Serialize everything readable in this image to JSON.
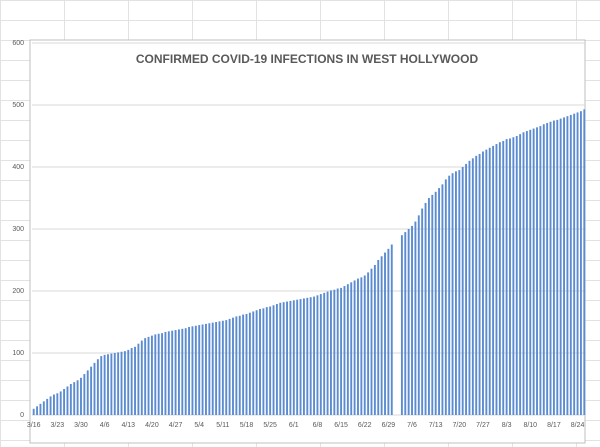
{
  "chart_data": {
    "type": "bar",
    "title": "CONFIRMED COVID-19 INFECTIONS IN WEST HOLLYWOOD",
    "categories": [
      "3/16",
      null,
      null,
      null,
      null,
      null,
      null,
      "3/23",
      null,
      null,
      null,
      null,
      null,
      null,
      "3/30",
      null,
      null,
      null,
      null,
      null,
      null,
      "4/6",
      null,
      null,
      null,
      null,
      null,
      null,
      "4/13",
      null,
      null,
      null,
      null,
      null,
      null,
      "4/20",
      null,
      null,
      null,
      null,
      null,
      null,
      "4/27",
      null,
      null,
      null,
      null,
      null,
      null,
      "5/4",
      null,
      null,
      null,
      null,
      null,
      null,
      "5/11",
      null,
      null,
      null,
      null,
      null,
      null,
      "5/18",
      null,
      null,
      null,
      null,
      null,
      null,
      "5/25",
      null,
      null,
      null,
      null,
      null,
      null,
      "6/1",
      null,
      null,
      null,
      null,
      null,
      null,
      "6/8",
      null,
      null,
      null,
      null,
      null,
      null,
      "6/15",
      null,
      null,
      null,
      null,
      null,
      null,
      "6/22",
      null,
      null,
      null,
      null,
      null,
      null,
      "6/29",
      null,
      null,
      null,
      null,
      null,
      null,
      "7/6",
      null,
      null,
      null,
      null,
      null,
      null,
      "7/13",
      null,
      null,
      null,
      null,
      null,
      null,
      "7/20",
      null,
      null,
      null,
      null,
      null,
      null,
      "7/27",
      null,
      null,
      null,
      null,
      null,
      null,
      "8/3",
      null,
      null,
      null,
      null,
      null,
      null,
      "8/10",
      null,
      null,
      null,
      null,
      null,
      null,
      "8/17",
      null,
      null,
      null,
      null,
      null,
      null,
      "8/24",
      null,
      null
    ],
    "values": [
      10,
      14,
      18,
      22,
      26,
      30,
      33,
      35,
      38,
      42,
      46,
      50,
      53,
      56,
      60,
      66,
      72,
      78,
      84,
      90,
      95,
      97,
      98,
      99,
      100,
      101,
      102,
      103,
      105,
      108,
      110,
      115,
      120,
      124,
      126,
      128,
      130,
      131,
      132,
      134,
      135,
      136,
      137,
      138,
      139,
      140,
      142,
      143,
      144,
      145,
      146,
      147,
      148,
      149,
      150,
      151,
      152,
      153,
      155,
      157,
      159,
      160,
      162,
      163,
      165,
      167,
      169,
      171,
      172,
      174,
      175,
      177,
      179,
      181,
      182,
      183,
      184,
      185,
      186,
      187,
      188,
      189,
      190,
      191,
      193,
      195,
      197,
      199,
      201,
      202,
      204,
      205,
      208,
      211,
      214,
      217,
      220,
      222,
      225,
      230,
      236,
      242,
      250,
      256,
      262,
      268,
      275,
      null,
      null,
      290,
      295,
      300,
      305,
      312,
      322,
      333,
      342,
      350,
      355,
      360,
      366,
      372,
      380,
      386,
      390,
      393,
      395,
      400,
      405,
      410,
      414,
      418,
      421,
      425,
      428,
      431,
      434,
      437,
      440,
      442,
      445,
      446,
      448,
      450,
      453,
      456,
      458,
      460,
      462,
      464,
      466,
      469,
      471,
      473,
      475,
      476,
      478,
      480,
      482,
      484,
      486,
      488,
      490,
      493
    ],
    "color": "#5b8bd0",
    "ylim": [
      0,
      600
    ],
    "yticks": [
      0,
      100,
      200,
      300,
      400,
      500,
      600
    ],
    "grid": true
  }
}
